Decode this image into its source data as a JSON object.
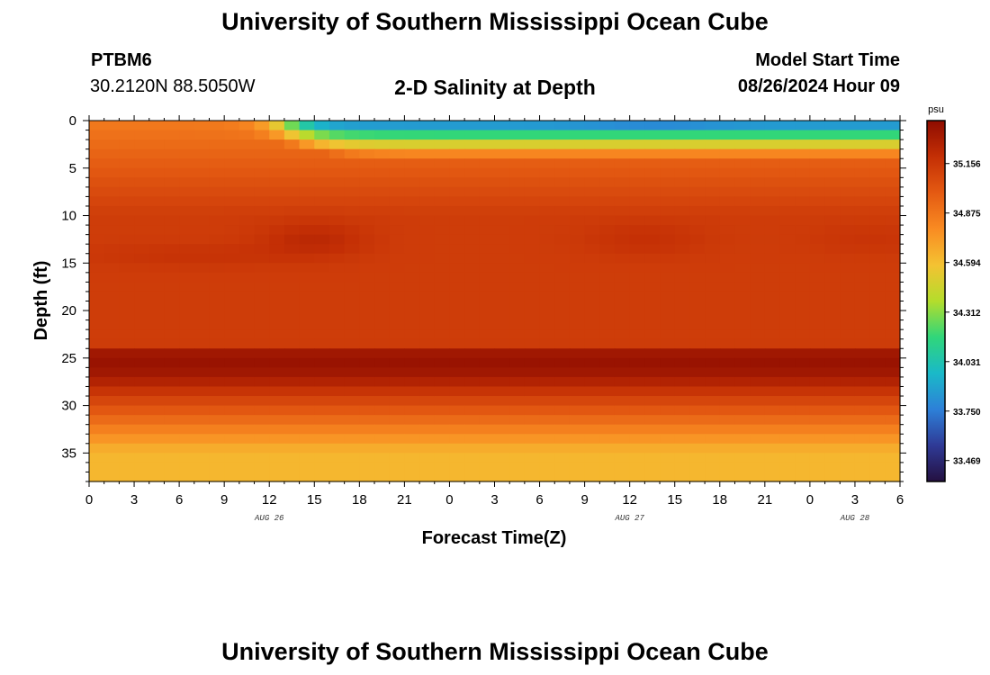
{
  "header": {
    "title": "University of Southern Mississippi Ocean Cube",
    "station_id": "PTBM6",
    "station_coords": "30.2120N  88.5050W",
    "plot_title": "2-D Salinity at Depth",
    "start_label": "Model Start Time",
    "start_value": "08/26/2024 Hour 09"
  },
  "footer": {
    "title": "University of Southern Mississippi Ocean Cube"
  },
  "chart_data": {
    "type": "heatmap",
    "title": "2-D Salinity at Depth",
    "xlabel": "Forecast Time(Z)",
    "ylabel": "Depth (ft)",
    "x_ticks": [
      "0",
      "3",
      "6",
      "9",
      "12",
      "15",
      "18",
      "21",
      "0",
      "3",
      "6",
      "9",
      "12",
      "15",
      "18",
      "21",
      "0",
      "3",
      "6"
    ],
    "x_dates": [
      {
        "label": "AUG 26",
        "at_tick": 4
      },
      {
        "label": "AUG 27",
        "at_tick": 12
      },
      {
        "label": "AUG 28",
        "at_tick": 17
      }
    ],
    "xlim_hours": [
      0,
      54
    ],
    "y_ticks": [
      0,
      5,
      10,
      15,
      20,
      25,
      30,
      35
    ],
    "ylim": [
      0,
      38
    ],
    "y_inverted": true,
    "colorbar": {
      "unit": "psu",
      "min": 33.35,
      "max": 35.4,
      "labels": [
        "35.156",
        "34.875",
        "34.594",
        "34.312",
        "34.031",
        "33.750",
        "33.469"
      ],
      "colormap": [
        "#241040",
        "#2f3a96",
        "#2d80d8",
        "#1ab9c8",
        "#30d67a",
        "#b4dd2c",
        "#f4c232",
        "#f98b22",
        "#e45a12",
        "#c42f05",
        "#8e0c00"
      ]
    },
    "description_of_field": "Salinity (psu) by forecast hour (0-54) and depth (0-38 ft). Fresher water (33.4-34.6) in top ~4 ft after hour 13; saltiest layer (~35.3) near 25-26 ft; decreasing to ~34.6 near the bottom."
  }
}
